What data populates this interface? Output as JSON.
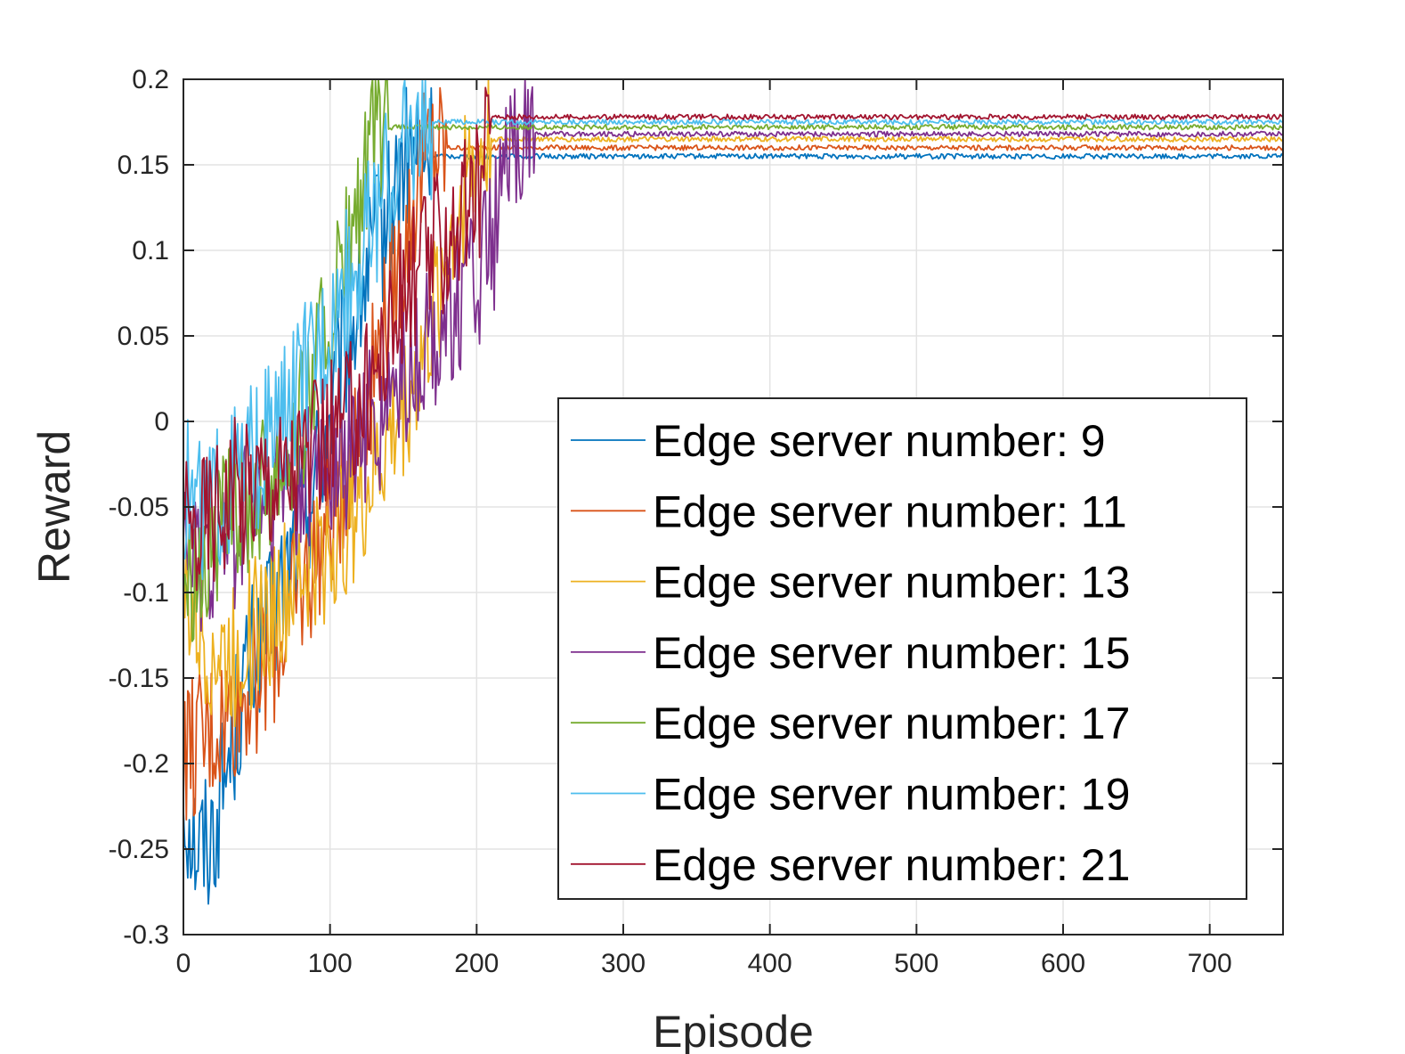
{
  "chart_data": {
    "type": "line",
    "title": "",
    "xlabel": "Episode",
    "ylabel": "Reward",
    "xlim": [
      0,
      750
    ],
    "ylim": [
      -0.3,
      0.2
    ],
    "xticks": [
      0,
      100,
      200,
      300,
      400,
      500,
      600,
      700
    ],
    "yticks": [
      -0.3,
      -0.25,
      -0.2,
      -0.15,
      -0.1,
      -0.05,
      0,
      0.05,
      0.1,
      0.15,
      0.2
    ],
    "grid": true,
    "legend_position": "lower-right",
    "series": [
      {
        "name": "Edge server number: 9",
        "color": "#0072BD",
        "x": [
          0,
          10,
          20,
          30,
          40,
          50,
          60,
          70,
          80,
          90,
          100,
          110,
          120,
          130,
          140,
          150,
          160,
          170,
          750
        ],
        "y": [
          -0.22,
          -0.25,
          -0.24,
          -0.2,
          -0.16,
          -0.13,
          -0.12,
          -0.09,
          -0.06,
          -0.03,
          0.0,
          0.04,
          0.07,
          0.1,
          0.12,
          0.15,
          0.155,
          0.155,
          0.155
        ]
      },
      {
        "name": "Edge server number: 11",
        "color": "#D95319",
        "x": [
          0,
          10,
          20,
          30,
          40,
          50,
          60,
          70,
          80,
          90,
          100,
          110,
          120,
          130,
          140,
          150,
          160,
          170,
          180,
          750
        ],
        "y": [
          -0.19,
          -0.19,
          -0.18,
          -0.17,
          -0.16,
          -0.15,
          -0.14,
          -0.12,
          -0.1,
          -0.08,
          -0.06,
          -0.03,
          0.0,
          0.03,
          0.07,
          0.1,
          0.14,
          0.16,
          0.16,
          0.16
        ]
      },
      {
        "name": "Edge server number: 13",
        "color": "#EDB120",
        "x": [
          0,
          10,
          20,
          30,
          40,
          50,
          60,
          70,
          80,
          90,
          100,
          110,
          120,
          130,
          140,
          150,
          160,
          170,
          180,
          190,
          200,
          210,
          750
        ],
        "y": [
          -0.1,
          -0.12,
          -0.13,
          -0.14,
          -0.13,
          -0.12,
          -0.11,
          -0.1,
          -0.09,
          -0.08,
          -0.07,
          -0.06,
          -0.05,
          -0.03,
          -0.01,
          0.01,
          0.03,
          0.06,
          0.1,
          0.13,
          0.155,
          0.165,
          0.165
        ]
      },
      {
        "name": "Edge server number: 15",
        "color": "#7E2F8E",
        "x": [
          0,
          10,
          20,
          30,
          40,
          50,
          60,
          70,
          80,
          90,
          100,
          110,
          120,
          130,
          140,
          150,
          160,
          170,
          180,
          190,
          200,
          210,
          220,
          230,
          240,
          750
        ],
        "y": [
          -0.08,
          -0.08,
          -0.07,
          -0.07,
          -0.06,
          -0.05,
          -0.05,
          -0.04,
          -0.04,
          -0.03,
          -0.03,
          -0.02,
          -0.01,
          0.0,
          0.01,
          0.02,
          0.03,
          0.05,
          0.06,
          0.07,
          0.08,
          0.1,
          0.14,
          0.165,
          0.168,
          0.168
        ]
      },
      {
        "name": "Edge server number: 17",
        "color": "#77AC30",
        "x": [
          0,
          10,
          20,
          30,
          40,
          50,
          60,
          70,
          80,
          90,
          100,
          110,
          120,
          130,
          140,
          750
        ],
        "y": [
          -0.09,
          -0.08,
          -0.07,
          -0.06,
          -0.05,
          -0.04,
          -0.03,
          -0.02,
          0.0,
          0.03,
          0.06,
          0.09,
          0.12,
          0.165,
          0.172,
          0.172
        ]
      },
      {
        "name": "Edge server number: 19",
        "color": "#4DBEEE",
        "x": [
          0,
          10,
          20,
          30,
          40,
          50,
          60,
          70,
          80,
          90,
          100,
          110,
          120,
          130,
          140,
          150,
          160,
          170,
          750
        ],
        "y": [
          -0.04,
          -0.05,
          -0.05,
          -0.04,
          -0.03,
          -0.02,
          -0.01,
          0.0,
          0.02,
          0.04,
          0.06,
          0.08,
          0.1,
          0.12,
          0.14,
          0.16,
          0.172,
          0.175,
          0.175
        ]
      },
      {
        "name": "Edge server number: 21",
        "color": "#A2142F",
        "x": [
          0,
          10,
          20,
          30,
          40,
          50,
          60,
          70,
          80,
          90,
          100,
          110,
          120,
          130,
          140,
          150,
          160,
          170,
          180,
          190,
          200,
          210,
          750
        ],
        "y": [
          -0.07,
          -0.06,
          -0.05,
          -0.04,
          -0.04,
          -0.03,
          -0.03,
          -0.03,
          -0.02,
          -0.02,
          -0.01,
          0.0,
          0.01,
          0.03,
          0.05,
          0.07,
          0.09,
          0.1,
          0.11,
          0.12,
          0.13,
          0.178,
          0.178
        ]
      }
    ]
  }
}
